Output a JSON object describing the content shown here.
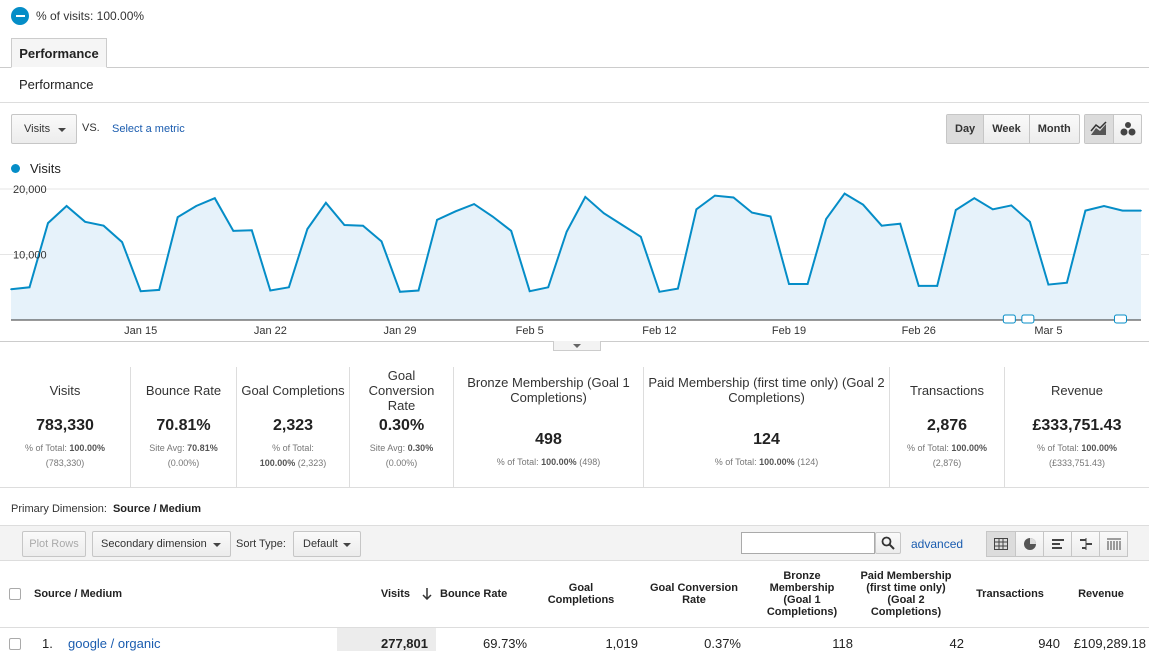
{
  "segment": {
    "label": "% of visits: 100.00%"
  },
  "tabs": [
    {
      "label": "Performance"
    }
  ],
  "section_title": "Performance",
  "controls": {
    "metric": "Visits",
    "vs": "VS.",
    "select_metric": "Select a metric",
    "granularity": [
      "Day",
      "Week",
      "Month"
    ],
    "granularity_selected": "Day",
    "chart_types": [
      "line-chart-icon",
      "motion-chart-icon"
    ]
  },
  "chart_data": {
    "type": "area",
    "legend": [
      {
        "name": "Visits",
        "color": "#058dc7"
      }
    ],
    "y_ticks": [
      "20,000",
      "10,000"
    ],
    "ylim": [
      0,
      20000
    ],
    "x_tick_labels": [
      "Jan 15",
      "Jan 22",
      "Jan 29",
      "Feb 5",
      "Feb 12",
      "Feb 19",
      "Feb 26",
      "Mar 5"
    ],
    "x_start": "Jan 8",
    "series": [
      {
        "name": "Visits",
        "values": [
          4700,
          5000,
          14800,
          17400,
          15000,
          14400,
          11900,
          4400,
          4600,
          15700,
          17400,
          18600,
          13600,
          13700,
          4500,
          5000,
          13900,
          17900,
          14500,
          14400,
          12000,
          4300,
          4500,
          15300,
          16600,
          17700,
          15800,
          13600,
          4400,
          5000,
          13500,
          18800,
          16300,
          14500,
          12700,
          4300,
          4800,
          16900,
          19000,
          18700,
          16400,
          15800,
          5500,
          5500,
          15400,
          19300,
          17600,
          14400,
          14700,
          5200,
          5200,
          16800,
          18600,
          16900,
          17500,
          15000,
          5400,
          5700,
          16700,
          17400,
          16700,
          16700
        ]
      }
    ],
    "annotation_markers": 3,
    "grid": true
  },
  "scorecard": [
    {
      "label": "Visits",
      "value": "783,330",
      "sub1": "% of Total:",
      "sub1_bold": "100.00%",
      "sub2": "(783,330)"
    },
    {
      "label": "Bounce Rate",
      "value": "70.81%",
      "sub1": "Site Avg:",
      "sub1_bold": "70.81%",
      "sub2": "(0.00%)"
    },
    {
      "label": "Goal Completions",
      "value": "2,323",
      "sub1": "% of Total:",
      "sub1_bold": "",
      "sub2_bold": "100.00%",
      "sub2": "(2,323)"
    },
    {
      "label": "Goal Conversion Rate",
      "value": "0.30%",
      "sub1": "Site Avg:",
      "sub1_bold": "0.30%",
      "sub2": "(0.00%)"
    },
    {
      "label": "Bronze Membership (Goal 1 Completions)",
      "value": "498",
      "sub1": "% of Total:",
      "sub1_bold": "100.00%",
      "sub2": "(498)"
    },
    {
      "label": "Paid Membership (first time only) (Goal 2 Completions)",
      "value": "124",
      "sub1": "% of Total:",
      "sub1_bold": "100.00%",
      "sub2": "(124)"
    },
    {
      "label": "Transactions",
      "value": "2,876",
      "sub1": "% of Total:",
      "sub1_bold": "100.00%",
      "sub2": "(2,876)"
    },
    {
      "label": "Revenue",
      "value": "£333,751.43",
      "sub1": "% of Total:",
      "sub1_bold": "100.00%",
      "sub2": "(£333,751.43)"
    }
  ],
  "primary_dimension": {
    "label": "Primary Dimension:",
    "value": "Source / Medium"
  },
  "toolbar": {
    "plot_rows": "Plot Rows",
    "secondary_dimension": "Secondary dimension",
    "sort_type_label": "Sort Type:",
    "sort_type": "Default",
    "search_placeholder": "",
    "advanced": "advanced",
    "view_icons": [
      "table-view-icon",
      "pie-view-icon",
      "performance-view-icon",
      "comparison-view-icon",
      "pivot-view-icon"
    ]
  },
  "table": {
    "headers": [
      "Source / Medium",
      "Visits",
      "Bounce Rate",
      "Goal Completions",
      "Goal Conversion Rate",
      "Bronze Membership (Goal 1 Completions)",
      "Paid Membership (first time only) (Goal 2 Completions)",
      "Transactions",
      "Revenue"
    ],
    "rows": [
      {
        "index": "1.",
        "source": "google / organic",
        "visits": "277,801",
        "bounce": "69.73%",
        "goals": "1,019",
        "conv": "0.37%",
        "bronze": "118",
        "paid": "42",
        "transactions": "940",
        "revenue": "£109,289.18"
      }
    ]
  }
}
